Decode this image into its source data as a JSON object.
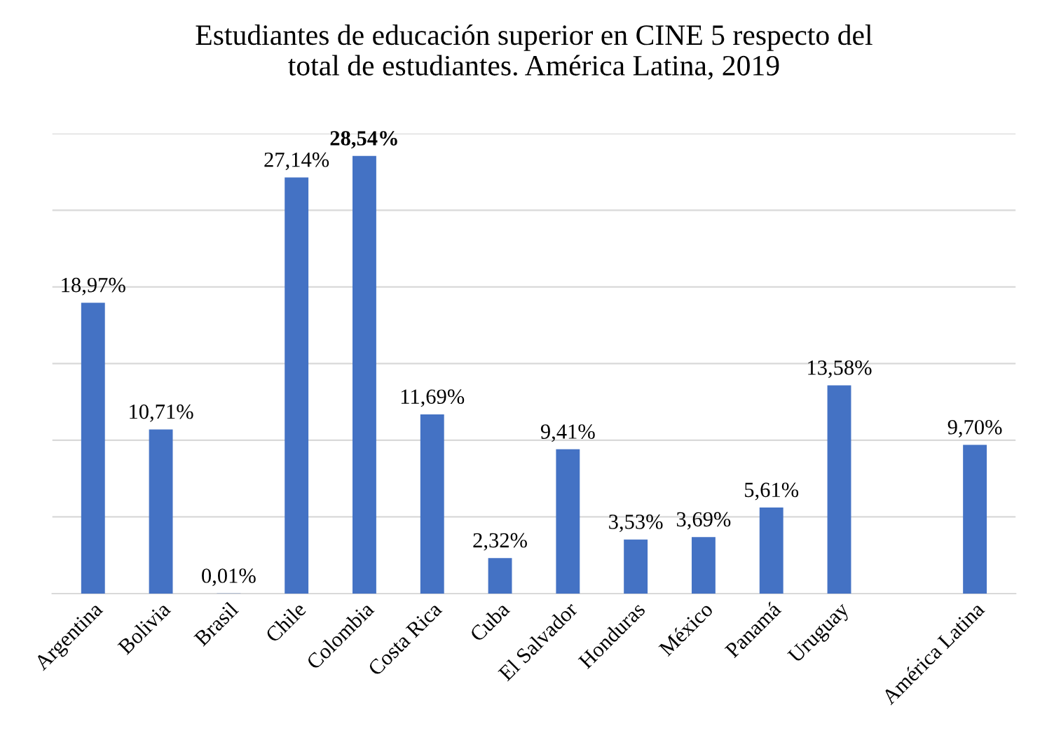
{
  "chart_data": {
    "type": "bar",
    "title": "Estudiantes de educación superior en CINE 5 respecto del\ntotal de estudiantes. América Latina, 2019",
    "categories": [
      "Argentina",
      "Bolivia",
      "Brasil",
      "Chile",
      "Colombia",
      "Costa Rica",
      "Cuba",
      "El Salvador",
      "Honduras",
      "México",
      "Panamá",
      "Uruguay",
      null,
      "América Latina"
    ],
    "values": [
      18.97,
      10.71,
      0.01,
      27.14,
      28.54,
      11.69,
      2.32,
      9.41,
      3.53,
      3.69,
      5.61,
      13.58,
      null,
      9.7
    ],
    "value_labels": [
      "18,97%",
      "10,71%",
      "0,01%",
      "27,14%",
      "28,54%",
      "11,69%",
      "2,32%",
      "9,41%",
      "3,53%",
      "3,69%",
      "5,61%",
      "13,58%",
      null,
      "9,70%"
    ],
    "color": "#4472c4",
    "ylim": [
      0,
      30
    ],
    "yticks": [
      {
        "value": 0,
        "label": null
      },
      {
        "value": 5,
        "label": null
      },
      {
        "value": 10,
        "label": null
      },
      {
        "value": 15,
        "label": null
      },
      {
        "value": 20,
        "label": null
      },
      {
        "value": 25,
        "label": null
      },
      {
        "value": 30,
        "label": null
      }
    ],
    "tick_labels": "x",
    "grid": "y"
  }
}
